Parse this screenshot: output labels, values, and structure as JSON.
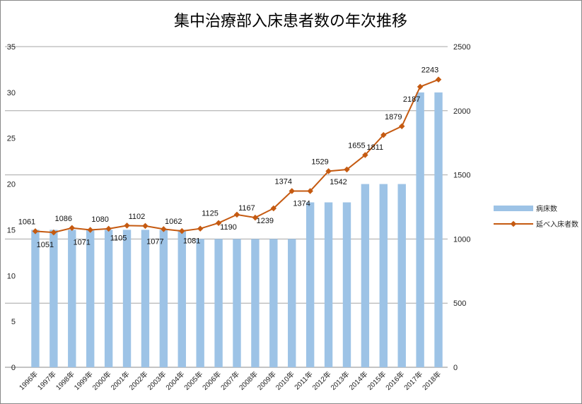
{
  "chart_data": {
    "type": "bar+line",
    "title": "集中治療部入床患者数の年次推移",
    "categories": [
      "1996年",
      "1997年",
      "1998年",
      "1999年",
      "2000年",
      "2001年",
      "2002年",
      "2003年",
      "2004年",
      "2005年",
      "2006年",
      "2007年",
      "2008年",
      "2009年",
      "2010年",
      "2011年",
      "2012年",
      "2013年",
      "2014年",
      "2015年",
      "2016年",
      "2017年",
      "2018年"
    ],
    "series": [
      {
        "name": "病床数",
        "type": "bar",
        "axis": "left",
        "color": "#9dc3e6",
        "values": [
          15,
          15,
          15,
          15,
          15,
          15,
          15,
          15,
          15,
          14,
          14,
          14,
          14,
          14,
          14,
          18,
          18,
          18,
          20,
          20,
          20,
          30,
          30
        ]
      },
      {
        "name": "延べ入床者数",
        "type": "line",
        "axis": "right",
        "color": "#c55a11",
        "values": [
          1061,
          1051,
          1086,
          1071,
          1080,
          1105,
          1102,
          1077,
          1062,
          1081,
          1125,
          1190,
          1167,
          1239,
          1374,
          1374,
          1529,
          1542,
          1655,
          1811,
          1879,
          2187,
          2243
        ]
      }
    ],
    "y_left": {
      "min": 0,
      "max": 35,
      "ticks": [
        "0",
        "5",
        "10",
        "15",
        "20",
        "25",
        "30",
        "35"
      ]
    },
    "y_right": {
      "min": 0,
      "max": 2500,
      "ticks": [
        "0",
        "500",
        "1000",
        "1500",
        "2000",
        "2500"
      ]
    },
    "grid": "horizontal lines at right-axis ticks",
    "legend_position": "right"
  }
}
